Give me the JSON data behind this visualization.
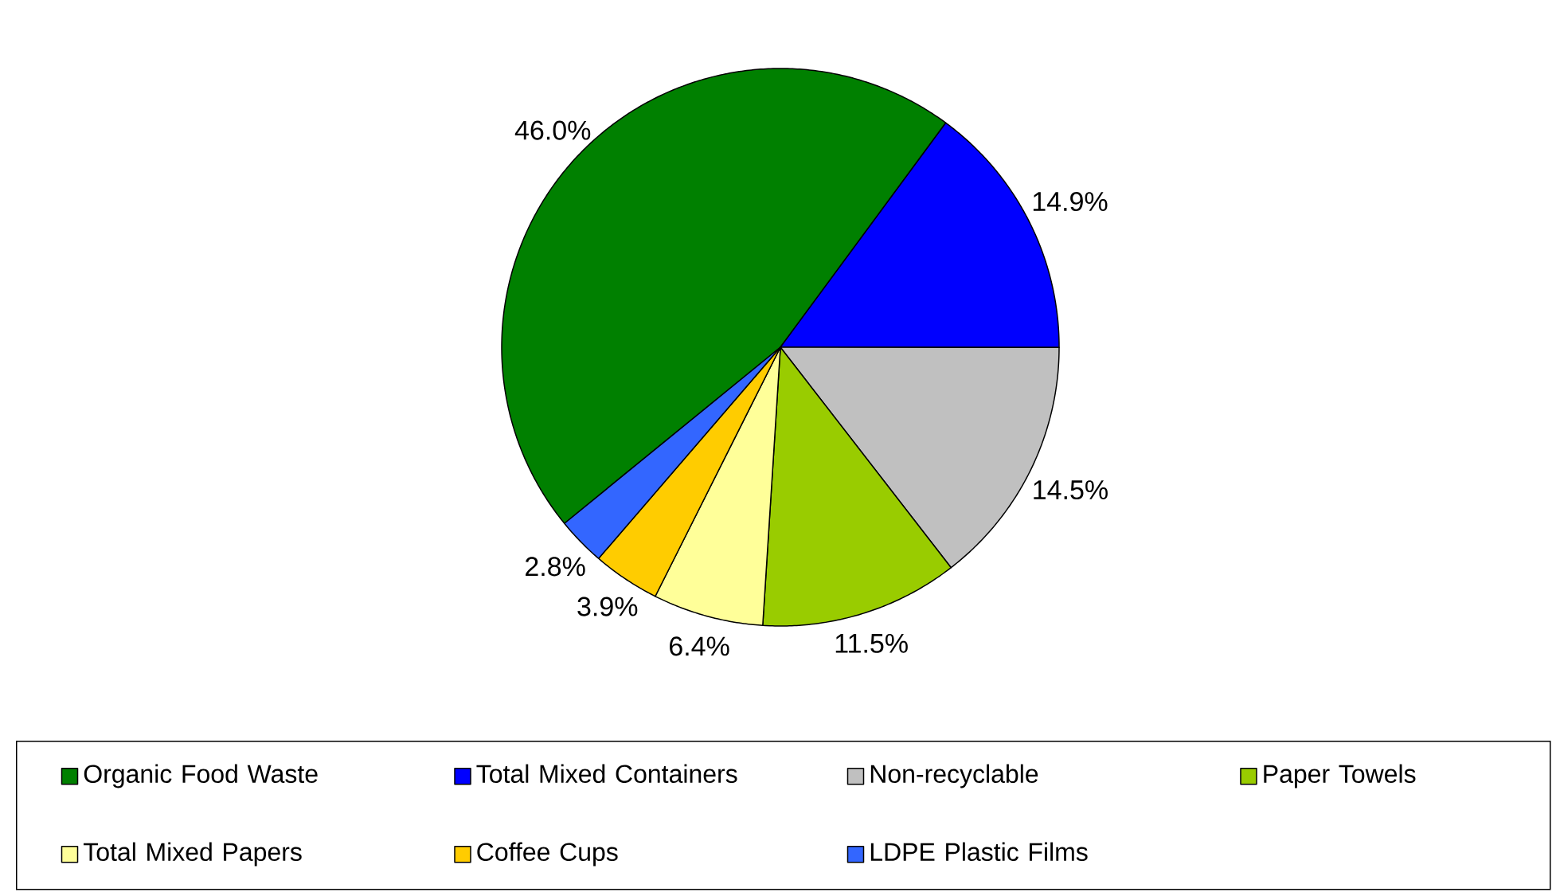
{
  "chart_data": {
    "type": "pie",
    "categories": [
      "Organic Food Waste",
      "Total Mixed Containers",
      "Non-recyclable",
      "Paper Towels",
      "Total Mixed Papers",
      "Coffee Cups",
      "LDPE Plastic Films"
    ],
    "values": [
      46.0,
      14.9,
      14.5,
      11.5,
      6.4,
      3.9,
      2.8
    ],
    "colors": [
      "#008000",
      "#0000ff",
      "#c0c0c0",
      "#99cc00",
      "#ffff99",
      "#ffcc00",
      "#3366ff"
    ],
    "value_labels": [
      "46.0%",
      "14.9%",
      "14.5%",
      "11.5%",
      "6.4%",
      "3.9%",
      "2.8%"
    ],
    "legend": "bottom"
  }
}
